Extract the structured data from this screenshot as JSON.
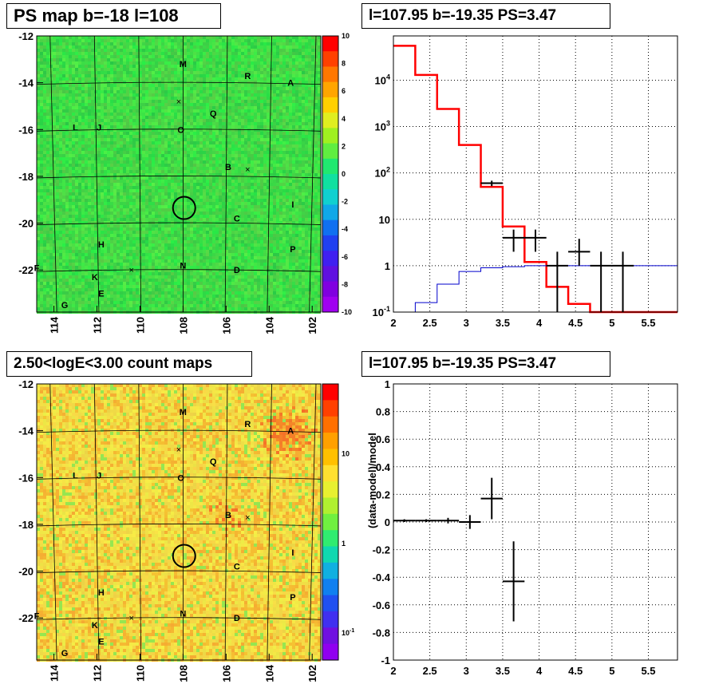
{
  "panels": {
    "top_left_title": "PS map b=-18 l=108",
    "top_right_title": "l=107.95 b=-19.35 PS=3.47",
    "bottom_left_title": "2.50<logE<3.00 count maps",
    "bottom_right_title": "l=107.95 b=-19.35 PS=3.47"
  },
  "colors": {
    "map_green": "#33dd55",
    "map_yellow": "#f2dd55",
    "model_line": "#ff0000",
    "data_cross": "#000000",
    "ratio_line": "#0000cc",
    "grid": "#000000"
  },
  "chart_data": [
    {
      "type": "heatmap",
      "title": "PS map b=-18 l=108",
      "x_axis": {
        "label": "",
        "ticks": [
          "114",
          "112",
          "110",
          "108",
          "106",
          "104",
          "102"
        ],
        "range": [
          114.8,
          101.6
        ]
      },
      "y_axis": {
        "label": "",
        "ticks": [
          "-12",
          "-14",
          "-16",
          "-18",
          "-20",
          "-22"
        ],
        "range": [
          -23.8,
          -12
        ]
      },
      "colorbar": {
        "ticks": [
          "10",
          "8",
          "6",
          "4",
          "2",
          "0",
          "-2",
          "-4",
          "-6",
          "-8",
          "-10"
        ],
        "range": [
          -10,
          10
        ]
      },
      "sources": [
        {
          "label": "M",
          "l": 108.0,
          "b": -13.2
        },
        {
          "label": "R",
          "l": 105.0,
          "b": -13.7
        },
        {
          "label": "A",
          "l": 103.0,
          "b": -14.0
        },
        {
          "label": "Q",
          "l": 106.6,
          "b": -15.3
        },
        {
          "label": "L",
          "l": 113.0,
          "b": -15.9
        },
        {
          "label": "J",
          "l": 111.9,
          "b": -15.9
        },
        {
          "label": "O",
          "l": 108.1,
          "b": -16.0
        },
        {
          "label": "B",
          "l": 105.9,
          "b": -17.6
        },
        {
          "label": "I",
          "l": 102.9,
          "b": -19.2
        },
        {
          "label": "C",
          "l": 105.5,
          "b": -19.8
        },
        {
          "label": "H",
          "l": 111.8,
          "b": -20.9
        },
        {
          "label": "P",
          "l": 102.9,
          "b": -21.1
        },
        {
          "label": "F",
          "l": 114.8,
          "b": -21.9
        },
        {
          "label": "N",
          "l": 108.0,
          "b": -21.8
        },
        {
          "label": "D",
          "l": 105.5,
          "b": -22.0
        },
        {
          "label": "K",
          "l": 112.1,
          "b": -22.3
        },
        {
          "label": "E",
          "l": 111.8,
          "b": -23.0
        },
        {
          "label": "G",
          "l": 113.5,
          "b": -23.5
        }
      ],
      "crosses": [
        {
          "l": 108.2,
          "b": -14.8
        },
        {
          "l": 105.0,
          "b": -17.7
        },
        {
          "l": 110.4,
          "b": -22.0
        }
      ],
      "circle": {
        "l": 107.95,
        "b": -19.35
      }
    },
    {
      "type": "line",
      "title": "l=107.95 b=-19.35 PS=3.47",
      "x_axis": {
        "label": "",
        "ticks": [
          "2",
          "2.5",
          "3",
          "3.5",
          "4",
          "4.5",
          "5",
          "5.5"
        ],
        "range": [
          2,
          5.9
        ]
      },
      "y_axis": {
        "label": "",
        "scale": "log",
        "ticks": [
          "10^-1",
          "1",
          "10",
          "10^2",
          "10^3",
          "10^4"
        ],
        "range": [
          0.1,
          90000
        ]
      },
      "grid": true,
      "series": [
        {
          "kind": "model_histogram",
          "edges": [
            2,
            2.3,
            2.6,
            2.9,
            3.2,
            3.5,
            3.8,
            4.1,
            4.4,
            4.7,
            5.0,
            5.3,
            5.6,
            5.9
          ],
          "values": [
            55000,
            13000,
            2400,
            400,
            50,
            7,
            1.2,
            0.35,
            0.15,
            0.1,
            0.1,
            0.1,
            0.1
          ]
        },
        {
          "kind": "ratio_histogram",
          "edges": [
            2,
            2.3,
            2.6,
            2.9,
            3.2,
            3.5,
            3.8,
            4.1,
            4.4,
            4.7,
            5.0,
            5.3,
            5.6,
            5.9
          ],
          "values": [
            0.1,
            0.16,
            0.4,
            0.75,
            0.9,
            0.95,
            1.0,
            1.0,
            1.0,
            1.0,
            1.0,
            1.0,
            1.0
          ]
        },
        {
          "kind": "data_points",
          "points": [
            {
              "x": 3.35,
              "y": 60,
              "xerr": 0.15,
              "ylo": 52,
              "yhi": 68
            },
            {
              "x": 3.65,
              "y": 4,
              "xerr": 0.15,
              "ylo": 2,
              "yhi": 6
            },
            {
              "x": 3.95,
              "y": 4,
              "xerr": 0.15,
              "ylo": 2,
              "yhi": 6
            },
            {
              "x": 4.25,
              "y": 1,
              "xerr": 0.15,
              "ylo": 0.1,
              "yhi": 2
            },
            {
              "x": 4.55,
              "y": 2,
              "xerr": 0.15,
              "ylo": 1,
              "yhi": 3.8
            },
            {
              "x": 4.85,
              "y": 1,
              "xerr": 0.15,
              "ylo": 0.1,
              "yhi": 2
            },
            {
              "x": 5.15,
              "y": 1,
              "xerr": 0.15,
              "ylo": 0.1,
              "yhi": 2
            }
          ]
        }
      ]
    },
    {
      "type": "heatmap",
      "title": "2.50<logE<3.00 count maps",
      "x_axis": {
        "label": "",
        "ticks": [
          "114",
          "112",
          "110",
          "108",
          "106",
          "104",
          "102"
        ],
        "range": [
          114.8,
          101.6
        ]
      },
      "y_axis": {
        "label": "",
        "ticks": [
          "-12",
          "-14",
          "-16",
          "-18",
          "-20",
          "-22"
        ],
        "range": [
          -23.8,
          -12
        ]
      },
      "colorbar": {
        "scale": "log",
        "ticks": [
          "10",
          "1",
          "10^-1"
        ],
        "range": [
          0.05,
          60
        ]
      },
      "sources": [
        {
          "label": "M",
          "l": 108.0,
          "b": -13.2
        },
        {
          "label": "R",
          "l": 105.0,
          "b": -13.7
        },
        {
          "label": "A",
          "l": 103.0,
          "b": -14.0
        },
        {
          "label": "Q",
          "l": 106.6,
          "b": -15.3
        },
        {
          "label": "L",
          "l": 113.0,
          "b": -15.9
        },
        {
          "label": "J",
          "l": 111.9,
          "b": -15.9
        },
        {
          "label": "O",
          "l": 108.1,
          "b": -16.0
        },
        {
          "label": "B",
          "l": 105.9,
          "b": -17.6
        },
        {
          "label": "I",
          "l": 102.9,
          "b": -19.2
        },
        {
          "label": "C",
          "l": 105.5,
          "b": -19.8
        },
        {
          "label": "H",
          "l": 111.8,
          "b": -20.9
        },
        {
          "label": "P",
          "l": 102.9,
          "b": -21.1
        },
        {
          "label": "F",
          "l": 114.8,
          "b": -21.9
        },
        {
          "label": "N",
          "l": 108.0,
          "b": -21.8
        },
        {
          "label": "D",
          "l": 105.5,
          "b": -22.0
        },
        {
          "label": "K",
          "l": 112.1,
          "b": -22.3
        },
        {
          "label": "E",
          "l": 111.8,
          "b": -23.0
        },
        {
          "label": "G",
          "l": 113.5,
          "b": -23.5
        }
      ],
      "crosses": [
        {
          "l": 108.2,
          "b": -14.8
        },
        {
          "l": 105.0,
          "b": -17.7
        },
        {
          "l": 110.4,
          "b": -22.0
        }
      ],
      "circle": {
        "l": 107.95,
        "b": -19.35
      }
    },
    {
      "type": "scatter",
      "title": "l=107.95 b=-19.35 PS=3.47",
      "x_axis": {
        "label": "",
        "ticks": [
          "2",
          "2.5",
          "3",
          "3.5",
          "4",
          "4.5",
          "5",
          "5.5"
        ],
        "range": [
          2,
          5.9
        ]
      },
      "y_axis": {
        "label": "(data-model)/model",
        "ticks": [
          "1",
          "0.8",
          "0.6",
          "0.4",
          "0.2",
          "0",
          "-0.2",
          "-0.4",
          "-0.6",
          "-0.8",
          "-1"
        ],
        "range": [
          -1,
          1
        ]
      },
      "grid": true,
      "points": [
        {
          "x": 2.15,
          "y": 0.01,
          "xerr": 0.15,
          "yerr": 0.01
        },
        {
          "x": 2.45,
          "y": 0.01,
          "xerr": 0.15,
          "yerr": 0.01
        },
        {
          "x": 2.75,
          "y": 0.01,
          "xerr": 0.15,
          "yerr": 0.02
        },
        {
          "x": 3.05,
          "y": 0.0,
          "xerr": 0.15,
          "yerr": 0.05
        },
        {
          "x": 3.35,
          "y": 0.17,
          "xerr": 0.15,
          "yerr": 0.15
        },
        {
          "x": 3.65,
          "y": -0.43,
          "xerr": 0.15,
          "yerr": 0.29
        }
      ]
    }
  ]
}
